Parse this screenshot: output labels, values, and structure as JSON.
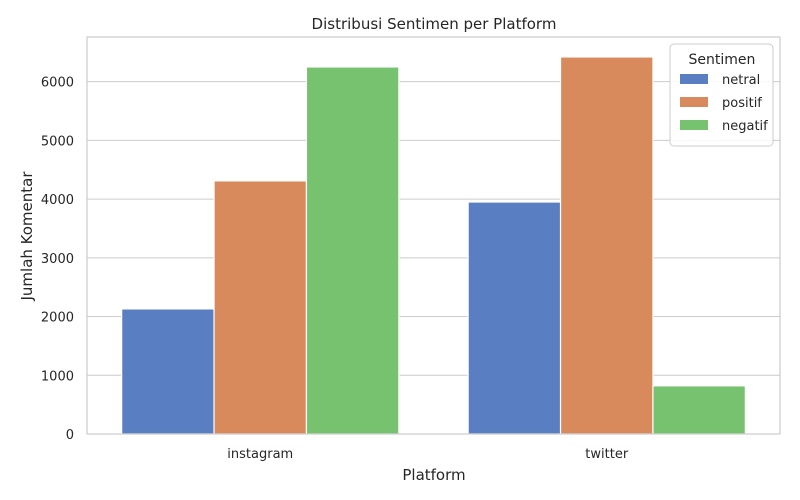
{
  "chart_data": {
    "type": "bar",
    "title": "Distribusi Sentimen per Platform",
    "xlabel": "Platform",
    "ylabel": "Jumlah Komentar",
    "categories": [
      "instagram",
      "twitter"
    ],
    "series": [
      {
        "name": "netral",
        "color": "#5a7ec2",
        "values": [
          2130,
          3950
        ]
      },
      {
        "name": "positif",
        "color": "#d88a5c",
        "values": [
          4310,
          6420
        ]
      },
      {
        "name": "negatif",
        "color": "#76c26f",
        "values": [
          6250,
          820
        ]
      }
    ],
    "ylim": [
      0,
      6760
    ],
    "yticks": [
      "0",
      "1000",
      "2000",
      "3000",
      "4000",
      "5000",
      "6000"
    ],
    "grid": true,
    "legend": {
      "title": "Sentimen",
      "placement": "top-right"
    }
  }
}
